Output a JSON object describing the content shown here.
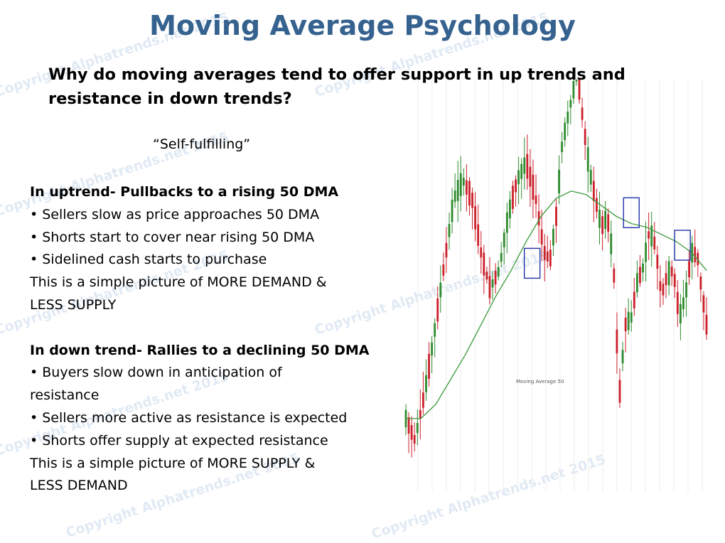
{
  "watermark": "Copyright Alphatrends.net 2015",
  "title": "Moving Average Psychology",
  "question": "Why do moving averages tend to offer support in up trends and resistance in down trends?",
  "quote": "“Self-fulfilling”",
  "uptrend": {
    "heading": "In uptrend- Pullbacks to a rising 50 DMA",
    "bullets": [
      "• Sellers slow as price approaches 50 DMA",
      "• Shorts start to cover near rising 50 DMA",
      "• Sidelined cash starts to purchase"
    ],
    "summary_line1": "This is a simple picture of MORE DEMAND &",
    "summary_line2": "LESS SUPPLY"
  },
  "downtrend": {
    "heading": "In down trend- Rallies to a declining 50 DMA",
    "bullet1_line1": "• Buyers slow down in anticipation of",
    "bullet1_line2": "resistance",
    "bullet2": "• Sellers more active as resistance is expected",
    "bullet3": "• Shorts offer supply at expected resistance",
    "summary_line1": "This is a simple picture of MORE SUPPLY &",
    "summary_line2": "LESS DEMAND"
  },
  "chart_data": {
    "type": "candlestick",
    "legend": "Moving Average 50",
    "up_color": "#2e8b2e",
    "down_color": "#cc1f2a",
    "ma_color": "#3a9a3a",
    "highlight_color": "#2233aa",
    "price_path": [
      [
        0,
        14
      ],
      [
        3,
        8
      ],
      [
        6,
        20
      ],
      [
        9,
        35
      ],
      [
        13,
        58
      ],
      [
        16,
        75
      ],
      [
        19,
        80
      ],
      [
        22,
        75
      ],
      [
        25,
        60
      ],
      [
        28,
        50
      ],
      [
        31,
        55
      ],
      [
        34,
        70
      ],
      [
        37,
        80
      ],
      [
        40,
        85
      ],
      [
        43,
        76
      ],
      [
        46,
        60
      ],
      [
        48,
        58
      ],
      [
        50,
        70
      ],
      [
        52,
        90
      ],
      [
        55,
        102
      ],
      [
        57,
        110
      ],
      [
        59,
        96
      ],
      [
        61,
        83
      ],
      [
        63,
        75
      ],
      [
        65,
        67
      ],
      [
        67,
        70
      ],
      [
        69,
        58
      ],
      [
        71,
        20
      ],
      [
        73,
        40
      ],
      [
        75,
        42
      ],
      [
        77,
        52
      ],
      [
        79,
        56
      ],
      [
        81,
        66
      ],
      [
        83,
        62
      ],
      [
        85,
        48
      ],
      [
        87,
        54
      ],
      [
        89,
        55
      ],
      [
        91,
        42
      ],
      [
        93,
        48
      ],
      [
        95,
        60
      ],
      [
        97,
        59
      ],
      [
        98,
        52
      ],
      [
        100,
        40
      ]
    ],
    "ma_path": [
      [
        0,
        14
      ],
      [
        5,
        14
      ],
      [
        10,
        18
      ],
      [
        15,
        25
      ],
      [
        20,
        32
      ],
      [
        25,
        40
      ],
      [
        30,
        48
      ],
      [
        35,
        55
      ],
      [
        40,
        63
      ],
      [
        45,
        70
      ],
      [
        50,
        75
      ],
      [
        55,
        77
      ],
      [
        60,
        76
      ],
      [
        65,
        73
      ],
      [
        70,
        70
      ],
      [
        75,
        68
      ],
      [
        80,
        67
      ],
      [
        85,
        65
      ],
      [
        90,
        63
      ],
      [
        95,
        60
      ],
      [
        100,
        55
      ]
    ],
    "highlight_boxes": [
      {
        "x": 42,
        "y": 57
      },
      {
        "x": 75,
        "y": 71
      },
      {
        "x": 92,
        "y": 62
      }
    ]
  }
}
